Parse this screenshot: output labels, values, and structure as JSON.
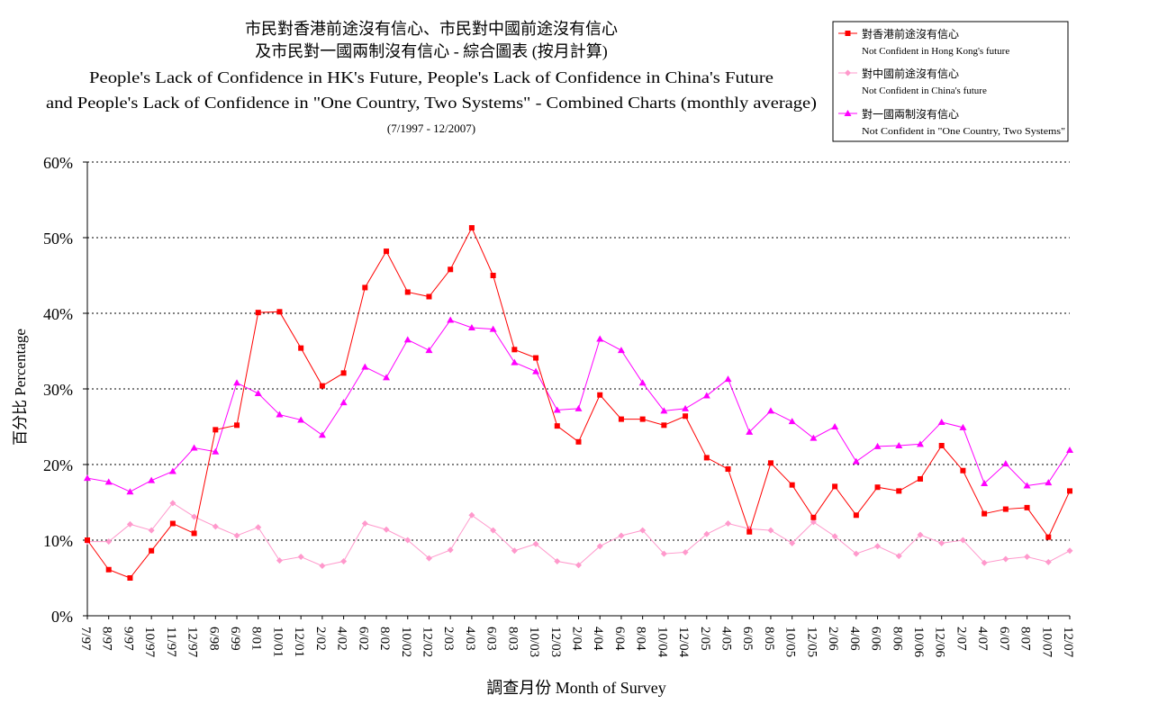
{
  "chart_data": {
    "type": "line",
    "title_zh_line1": "市民對香港前途沒有信心、市民對中國前途沒有信心",
    "title_zh_line2": "及市民對一國兩制沒有信心 - 綜合圖表 (按月計算)",
    "title_en_line1": "People's Lack of Confidence in HK's Future, People's Lack of Confidence in China's Future",
    "title_en_line2": "and People's Lack of Confidence in \"One Country, Two Systems\" - Combined Charts (monthly average)",
    "subtitle": "(7/1997 - 12/2007)",
    "xlabel": "調查月份 Month of Survey",
    "ylabel": "百分比 Percentage",
    "ylim": [
      0,
      60
    ],
    "yticks": [
      "0%",
      "10%",
      "20%",
      "30%",
      "40%",
      "50%",
      "60%"
    ],
    "grid": true,
    "legend_position": "top-right",
    "categories": [
      "7/97",
      "8/97",
      "9/97",
      "10/97",
      "11/97",
      "12/97",
      "6/98",
      "6/99",
      "8/01",
      "10/01",
      "12/01",
      "2/02",
      "4/02",
      "6/02",
      "8/02",
      "10/02",
      "12/02",
      "2/03",
      "4/03",
      "6/03",
      "8/03",
      "10/03",
      "12/03",
      "2/04",
      "4/04",
      "6/04",
      "8/04",
      "10/04",
      "12/04",
      "2/05",
      "4/05",
      "6/05",
      "8/05",
      "10/05",
      "12/05",
      "2/06",
      "4/06",
      "6/06",
      "8/06",
      "10/06",
      "12/06",
      "2/07",
      "4/07",
      "6/07",
      "8/07",
      "10/07",
      "12/07"
    ],
    "series": [
      {
        "name_zh": "對香港前途沒有信心",
        "name_en": "Not Confident in Hong Kong's future",
        "color": "#ff0000",
        "marker": "square",
        "values": [
          10.0,
          6.1,
          5.0,
          8.6,
          12.2,
          10.9,
          24.6,
          25.2,
          40.1,
          40.2,
          35.4,
          30.4,
          32.1,
          43.4,
          48.2,
          42.8,
          42.2,
          45.8,
          51.3,
          45.0,
          35.2,
          34.1,
          25.1,
          23.0,
          29.2,
          26.0,
          26.0,
          25.2,
          26.4,
          20.9,
          19.4,
          11.1,
          20.2,
          17.3,
          13.0,
          17.1,
          13.3,
          17.0,
          16.5,
          18.1,
          22.5,
          19.2,
          13.5,
          14.1,
          14.3,
          10.4,
          16.5
        ]
      },
      {
        "name_zh": "對中國前途沒有信心",
        "name_en": "Not Confident in China's future",
        "color": "#ff99cc",
        "marker": "diamond",
        "values": [
          9.8,
          9.8,
          12.1,
          11.3,
          14.9,
          13.1,
          11.8,
          10.6,
          11.7,
          7.3,
          7.8,
          6.6,
          7.2,
          12.2,
          11.4,
          10.0,
          7.6,
          8.7,
          13.3,
          11.3,
          8.6,
          9.5,
          7.2,
          6.7,
          9.2,
          10.6,
          11.3,
          8.2,
          8.4,
          10.8,
          12.2,
          11.5,
          11.3,
          9.6,
          12.4,
          10.5,
          8.2,
          9.2,
          7.9,
          10.7,
          9.6,
          10.0,
          7.0,
          7.5,
          7.8,
          7.1,
          8.6
        ]
      },
      {
        "name_zh": "對一國兩制沒有信心",
        "name_en": "Not Confident in \"One Country, Two Systems\"",
        "color": "#ff00ff",
        "marker": "triangle",
        "values": [
          18.2,
          17.7,
          16.4,
          17.9,
          19.1,
          22.2,
          21.7,
          30.8,
          29.4,
          26.6,
          25.9,
          23.9,
          28.2,
          32.9,
          31.5,
          36.5,
          35.1,
          39.1,
          38.1,
          37.9,
          33.5,
          32.3,
          27.2,
          27.4,
          36.6,
          35.1,
          30.8,
          27.1,
          27.4,
          29.1,
          31.3,
          24.3,
          27.1,
          25.7,
          23.5,
          25.0,
          20.4,
          22.4,
          22.5,
          22.7,
          25.6,
          24.9,
          17.5,
          20.1,
          17.2,
          17.6,
          21.9
        ]
      }
    ]
  }
}
